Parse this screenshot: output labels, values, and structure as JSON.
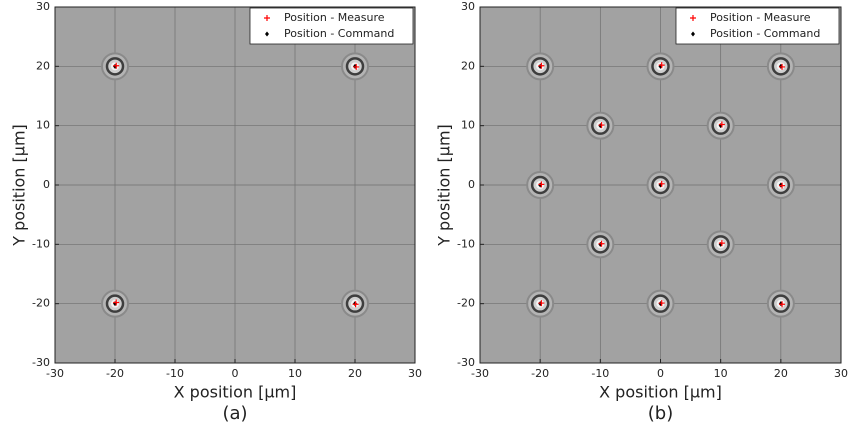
{
  "chart_data": [
    {
      "type": "scatter",
      "xlabel": "X position [µm]",
      "ylabel": "Y position [µm]",
      "caption": "(a)",
      "xlim": [
        -30,
        30
      ],
      "ylim": [
        -30,
        30
      ],
      "xticks": [
        -30,
        -20,
        -10,
        0,
        10,
        20,
        30
      ],
      "yticks": [
        -30,
        -20,
        -10,
        0,
        10,
        20,
        30
      ],
      "grid": true,
      "legend": "upper right",
      "series": [
        {
          "name": "Position - Measure",
          "color": "#ff0000",
          "marker": "+",
          "x": [
            -19.8,
            20.2,
            -19.8,
            20.1
          ],
          "y": [
            20.1,
            19.9,
            -19.8,
            -20.1
          ]
        },
        {
          "name": "Position - Command",
          "color": "#000000",
          "marker": "diamond",
          "x": [
            -20,
            20,
            -20,
            20
          ],
          "y": [
            20,
            20,
            -20,
            -20
          ]
        }
      ]
    },
    {
      "type": "scatter",
      "xlabel": "X position [µm]",
      "ylabel": "Y position [µm]",
      "caption": "(b)",
      "xlim": [
        -30,
        30
      ],
      "ylim": [
        -30,
        30
      ],
      "xticks": [
        -30,
        -20,
        -10,
        0,
        10,
        20,
        30
      ],
      "yticks": [
        -30,
        -20,
        -10,
        0,
        10,
        20,
        30
      ],
      "grid": true,
      "legend": "upper right",
      "series": [
        {
          "name": "Position - Measure",
          "color": "#ff0000",
          "marker": "+",
          "x": [
            -19.8,
            0.2,
            20.2,
            -9.8,
            10.2,
            -19.8,
            0.2,
            20.2,
            -9.8,
            10.2,
            -19.8,
            0.2,
            20.2
          ],
          "y": [
            20.1,
            20.2,
            19.9,
            10.1,
            10.2,
            0.1,
            0.2,
            -0.1,
            -9.9,
            -9.8,
            -19.9,
            -19.9,
            -20.1
          ]
        },
        {
          "name": "Position - Command",
          "color": "#000000",
          "marker": "diamond",
          "x": [
            -20,
            0,
            20,
            -10,
            10,
            -20,
            0,
            20,
            -10,
            10,
            -20,
            0,
            20
          ],
          "y": [
            20,
            20,
            20,
            10,
            10,
            0,
            0,
            0,
            -10,
            -10,
            -20,
            -20,
            -20
          ]
        }
      ]
    }
  ]
}
